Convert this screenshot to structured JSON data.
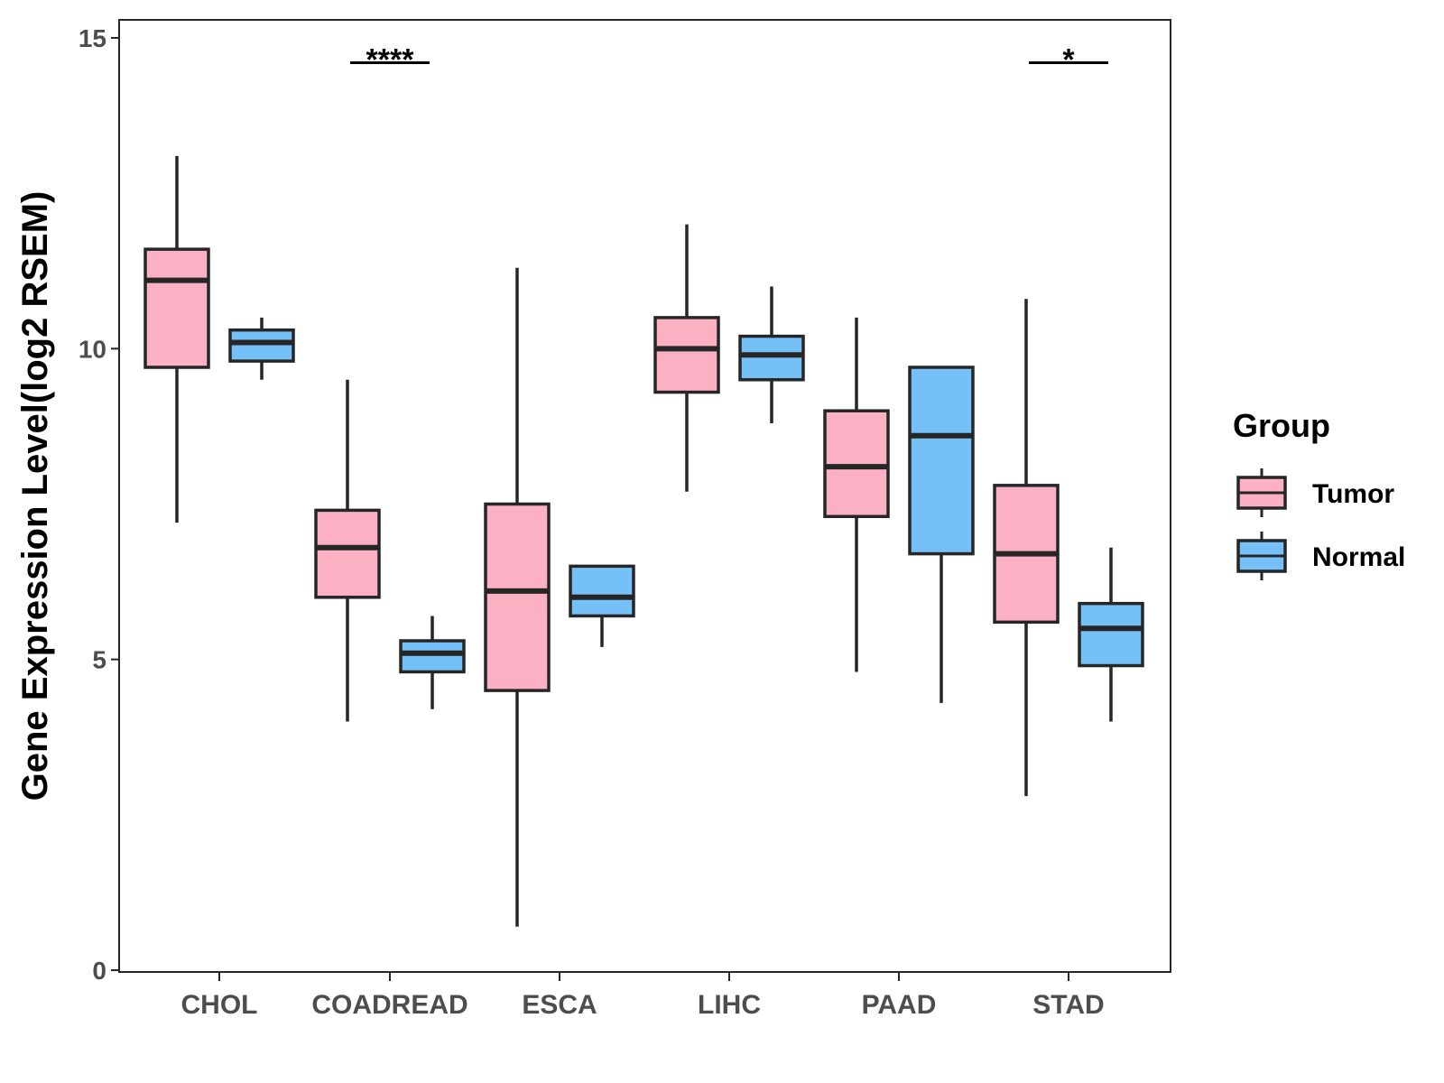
{
  "chart_data": {
    "type": "boxplot",
    "title": "",
    "xlabel": "",
    "ylabel": "Gene Expression Level(log2 RSEM)",
    "ylim": [
      0,
      15
    ],
    "yticks": [
      0,
      5,
      10,
      15
    ],
    "categories": [
      "CHOL",
      "COADREAD",
      "ESCA",
      "LIHC",
      "PAAD",
      "STAD"
    ],
    "legend": {
      "title": "Group",
      "position": "right",
      "items": [
        {
          "name": "Tumor",
          "color": "#FBB1C3"
        },
        {
          "name": "Normal",
          "color": "#76C0F8"
        }
      ]
    },
    "series": [
      {
        "name": "Tumor",
        "color": "#FBB1C3",
        "boxes": [
          {
            "category": "CHOL",
            "min": 7.2,
            "q1": 9.7,
            "median": 11.1,
            "q3": 11.6,
            "max": 13.1
          },
          {
            "category": "COADREAD",
            "min": 4.0,
            "q1": 6.0,
            "median": 6.8,
            "q3": 7.4,
            "max": 9.5
          },
          {
            "category": "ESCA",
            "min": 0.7,
            "q1": 4.5,
            "median": 6.1,
            "q3": 7.5,
            "max": 11.3
          },
          {
            "category": "LIHC",
            "min": 7.7,
            "q1": 9.3,
            "median": 10.0,
            "q3": 10.5,
            "max": 12.0
          },
          {
            "category": "PAAD",
            "min": 4.8,
            "q1": 7.3,
            "median": 8.1,
            "q3": 9.0,
            "max": 10.5
          },
          {
            "category": "STAD",
            "min": 2.8,
            "q1": 5.6,
            "median": 6.7,
            "q3": 7.8,
            "max": 10.8
          }
        ]
      },
      {
        "name": "Normal",
        "color": "#76C0F8",
        "boxes": [
          {
            "category": "CHOL",
            "min": 9.5,
            "q1": 9.8,
            "median": 10.1,
            "q3": 10.3,
            "max": 10.5
          },
          {
            "category": "COADREAD",
            "min": 4.2,
            "q1": 4.8,
            "median": 5.1,
            "q3": 5.3,
            "max": 5.7
          },
          {
            "category": "ESCA",
            "min": 5.2,
            "q1": 5.7,
            "median": 6.0,
            "q3": 6.5,
            "max": 6.5
          },
          {
            "category": "LIHC",
            "min": 8.8,
            "q1": 9.5,
            "median": 9.9,
            "q3": 10.2,
            "max": 11.0
          },
          {
            "category": "PAAD",
            "min": 4.3,
            "q1": 6.7,
            "median": 8.6,
            "q3": 9.7,
            "max": 9.7
          },
          {
            "category": "STAD",
            "min": 4.0,
            "q1": 4.9,
            "median": 5.5,
            "q3": 5.9,
            "max": 6.8
          }
        ]
      }
    ],
    "annotations": [
      {
        "category": "COADREAD",
        "text": "****",
        "y": 14.6
      },
      {
        "category": "STAD",
        "text": "*",
        "y": 14.6
      }
    ]
  },
  "colors": {
    "tumor": "#FBB1C3",
    "normal": "#76C0F8",
    "outline": "#262626",
    "tick_text": "#4d4d4d"
  }
}
